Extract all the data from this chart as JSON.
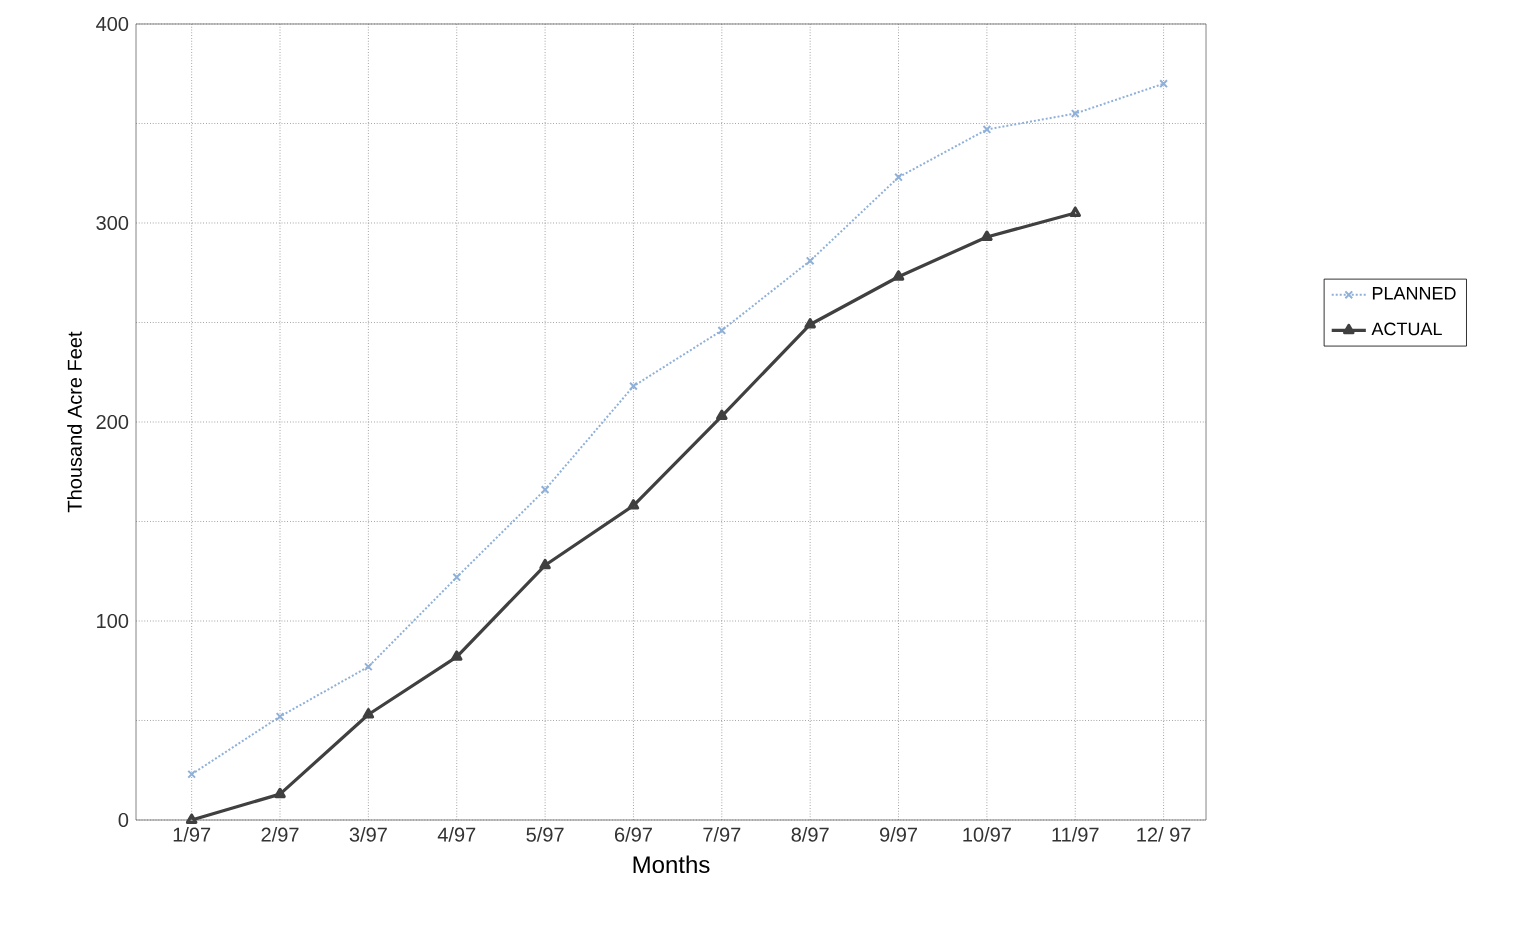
{
  "chart_data": {
    "type": "line",
    "xlabel": "Months",
    "ylabel": "Thousand Acre Feet",
    "categories": [
      "1/97",
      "2/97",
      "3/97",
      "4/97",
      "5/97",
      "6/97",
      "7/97",
      "8/97",
      "9/97",
      "10/97",
      "11/97",
      "12/ 97"
    ],
    "series": [
      {
        "name": "PLANNED",
        "color": "#8fb0d8",
        "marker": "cross",
        "line_style": "dotted",
        "values": [
          23,
          52,
          77,
          122,
          166,
          218,
          246,
          281,
          323,
          347,
          355,
          370
        ]
      },
      {
        "name": "ACTUAL",
        "color": "#404040",
        "marker": "triangle",
        "line_style": "solid",
        "values": [
          0,
          13,
          53,
          82,
          128,
          158,
          203,
          249,
          273,
          293,
          305,
          null
        ]
      }
    ],
    "ylim": [
      0,
      400
    ],
    "yticks": [
      0,
      {
        "value": 50,
        "label": null
      },
      100,
      {
        "value": 150,
        "label": null
      },
      200,
      {
        "value": 250,
        "label": null
      },
      300,
      {
        "value": 350,
        "label": null
      },
      400
    ],
    "grid": true,
    "legend": "right"
  }
}
